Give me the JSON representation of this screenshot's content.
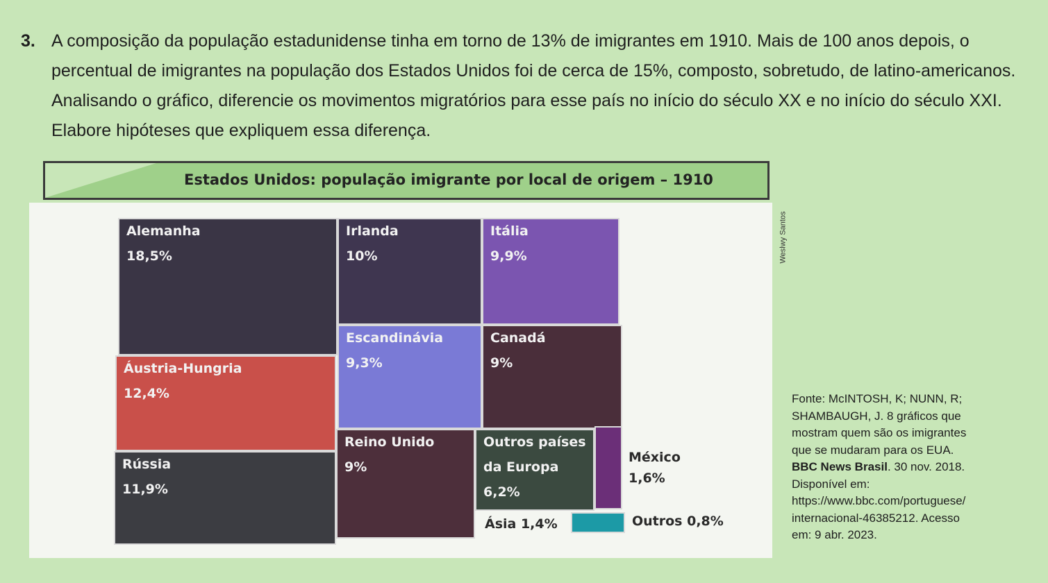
{
  "question": {
    "number": "3.",
    "text": "A composição da população estadunidense tinha em torno de 13% de imigrantes em 1910. Mais de 100 anos depois, o percentual de imigrantes na população dos Estados Unidos foi de cerca de 15%, composto, sobretudo, de latino-americanos. Analisando o gráfico, diferencie os movimentos migratórios para esse país no início do século XX e no início do século XXI. Elabore hipóteses que expliquem essa diferença."
  },
  "credit": "Weslwy Santos",
  "chart_data": {
    "type": "treemap",
    "title": "Estados Unidos: população imigrante por local de origem – 1910",
    "unit": "%",
    "items": [
      {
        "id": "alemanha",
        "label": "Alemanha",
        "value_text": "18,5%",
        "value": 18.5,
        "color": "#3a3545"
      },
      {
        "id": "irlanda",
        "label": "Irlanda",
        "value_text": "10%",
        "value": 10,
        "color": "#3f3650"
      },
      {
        "id": "italia",
        "label": "Itália",
        "value_text": "9,9%",
        "value": 9.9,
        "color": "#7b55b0"
      },
      {
        "id": "austria",
        "label": "Áustria-Hungria",
        "value_text": "12,4%",
        "value": 12.4,
        "color": "#c9504a"
      },
      {
        "id": "escandinavia",
        "label": "Escandinávia",
        "value_text": "9,3%",
        "value": 9.3,
        "color": "#7a7ad6"
      },
      {
        "id": "canada",
        "label": "Canadá",
        "value_text": "9%",
        "value": 9,
        "color": "#4a2e3a"
      },
      {
        "id": "russia",
        "label": "Rússia",
        "value_text": "11,9%",
        "value": 11.9,
        "color": "#3c3d42"
      },
      {
        "id": "reino",
        "label": "Reino Unido",
        "value_text": "9%",
        "value": 9,
        "color": "#4d2f3b"
      },
      {
        "id": "outros_europa",
        "label": [
          "Outros países",
          "da Europa"
        ],
        "value_text": "6,2%",
        "value": 6.2,
        "color": "#3b4a40"
      },
      {
        "id": "mexico",
        "label": "México",
        "value_text": "1,6%",
        "value": 1.6,
        "color": "#6b2f78"
      },
      {
        "id": "asia",
        "label": "Ásia 1,4%",
        "value_text": "",
        "value": 1.4,
        "color": "#1c9aa6"
      },
      {
        "id": "outros",
        "label": "Outros 0,8%",
        "value_text": "",
        "value": 0.8,
        "color": "#f4f6f1"
      }
    ]
  },
  "source": {
    "line1": "Fonte: McINTOSH, K; NUNN, R;",
    "line2": "SHAMBAUGH, J. 8 gráficos que",
    "line3": "mostram quem são os imigrantes",
    "line4": "que se mudaram para os EUA.",
    "publication": "BBC News Brasil",
    "date": ". 30 nov. 2018.",
    "line6": "Disponível em:",
    "line7": "https://www.bbc.com/portuguese/",
    "line8": "internacional-46385212. Acesso",
    "line9": "em: 9 abr. 2023."
  }
}
